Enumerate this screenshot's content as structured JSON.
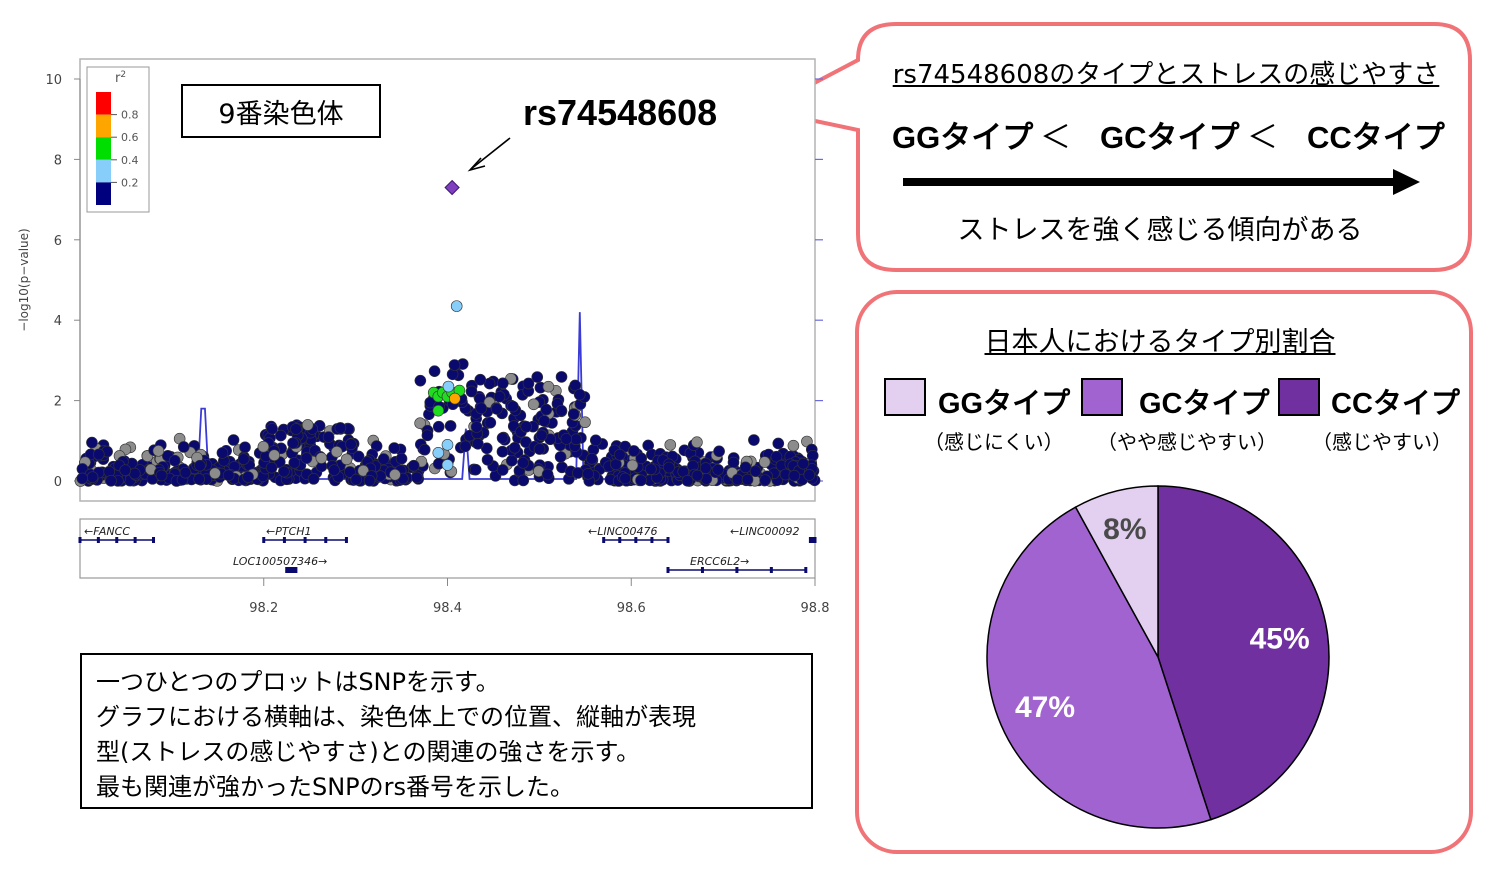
{
  "chromosome_label": "9番染色体",
  "snp_label": "rs74548608",
  "description_lines": [
    "一つひとつのプロットはSNPを示す。",
    "グラフにおける横軸は、染色体上での位置、縦軸が表現",
    "型(ストレスの感じやすさ)との関連の強さを示す。",
    "最も関連が強かったSNPのrs番号を示した。"
  ],
  "bubble": {
    "title": "rs74548608のタイプとストレスの感じやすさ",
    "order_line": [
      "GGタイプ",
      "＜",
      "GCタイプ",
      "＜",
      "CCタイプ"
    ],
    "caption": "ストレスを強く感じる傾向がある"
  },
  "pie_panel": {
    "title": "日本人におけるタイプ別割合",
    "legend": [
      {
        "label": "GGタイプ",
        "sub": "（感じにくい）",
        "color": "#e3d0f0"
      },
      {
        "label": "GCタイプ",
        "sub": "（やや感じやすい）",
        "color": "#a063cf"
      },
      {
        "label": "CCタイプ",
        "sub": "（感じやすい）",
        "color": "#7030a0"
      }
    ]
  },
  "colors": {
    "bubble_border": "#f07378",
    "snp_navy": "#0a0a6e",
    "recomb_line": "#3b3bd6",
    "top_snp": "#7f3fbf"
  },
  "chart_data": [
    {
      "type": "scatter",
      "ylabel": "−log10(p−value)",
      "xticks": [
        "98.2",
        "98.4",
        "98.6",
        "98.8"
      ],
      "yticks": [
        "0",
        "2",
        "4",
        "6",
        "8",
        "10"
      ],
      "xlim": [
        98.0,
        98.8
      ],
      "ylim": [
        0,
        10
      ],
      "r2_legend": {
        "title": "r2",
        "ticks": [
          "0.8",
          "0.6",
          "0.4",
          "0.2"
        ],
        "colors": [
          "#ff0000",
          "#ffa500",
          "#00dd00",
          "#87cefa",
          "#00007f"
        ]
      },
      "top_snp": {
        "x": 98.405,
        "y": 7.3
      },
      "highlight_points": [
        {
          "x": 98.41,
          "y": 4.35,
          "r2": "0.2-0.4"
        },
        {
          "x": 98.385,
          "y": 2.2,
          "r2": "0.4-0.6"
        },
        {
          "x": 98.39,
          "y": 2.1,
          "r2": "0.4-0.6"
        },
        {
          "x": 98.395,
          "y": 2.2,
          "r2": "0.4-0.6"
        },
        {
          "x": 98.4,
          "y": 2.1,
          "r2": "0.4-0.6"
        },
        {
          "x": 98.405,
          "y": 2.2,
          "r2": "0.4-0.6"
        },
        {
          "x": 98.413,
          "y": 2.25,
          "r2": "0.4-0.6"
        },
        {
          "x": 98.39,
          "y": 1.75,
          "r2": "0.4-0.6"
        },
        {
          "x": 98.408,
          "y": 2.05,
          "r2": "0.6-0.8"
        },
        {
          "x": 98.401,
          "y": 2.35,
          "r2": "0.2-0.4"
        },
        {
          "x": 98.4,
          "y": 0.9,
          "r2": "0.2-0.4"
        },
        {
          "x": 98.4,
          "y": 0.4,
          "r2": "0.2-0.4"
        },
        {
          "x": 98.39,
          "y": 0.7,
          "r2": "0.2-0.4"
        }
      ],
      "recomb_peaks": [
        {
          "x": 98.135,
          "y": 1.8
        },
        {
          "x": 98.545,
          "y": 4.2
        },
        {
          "x": 98.42,
          "y": 1.3
        }
      ],
      "genes": [
        {
          "name": "FANCC",
          "dir": "left",
          "start": 98.0,
          "end": 98.08,
          "row": 1
        },
        {
          "name": "PTCH1",
          "dir": "left",
          "start": 98.2,
          "end": 98.29,
          "row": 1
        },
        {
          "name": "LOC100507346",
          "dir": "right",
          "start": 98.225,
          "end": 98.235,
          "row": 2
        },
        {
          "name": "LINC00476",
          "dir": "left",
          "start": 98.57,
          "end": 98.64,
          "row": 1
        },
        {
          "name": "LINC00092",
          "dir": "left",
          "start": 98.795,
          "end": 98.8,
          "row": 1
        },
        {
          "name": "ERCC6L2",
          "dir": "right",
          "start": 98.64,
          "end": 98.79,
          "row": 2
        }
      ]
    },
    {
      "type": "pie",
      "labels": [
        "GGタイプ",
        "GCタイプ",
        "CCタイプ"
      ],
      "values": [
        8,
        47,
        45
      ],
      "value_labels": [
        "8%",
        "47%",
        "45%"
      ],
      "colors": [
        "#e3d0f0",
        "#a063cf",
        "#7030a0"
      ]
    }
  ]
}
